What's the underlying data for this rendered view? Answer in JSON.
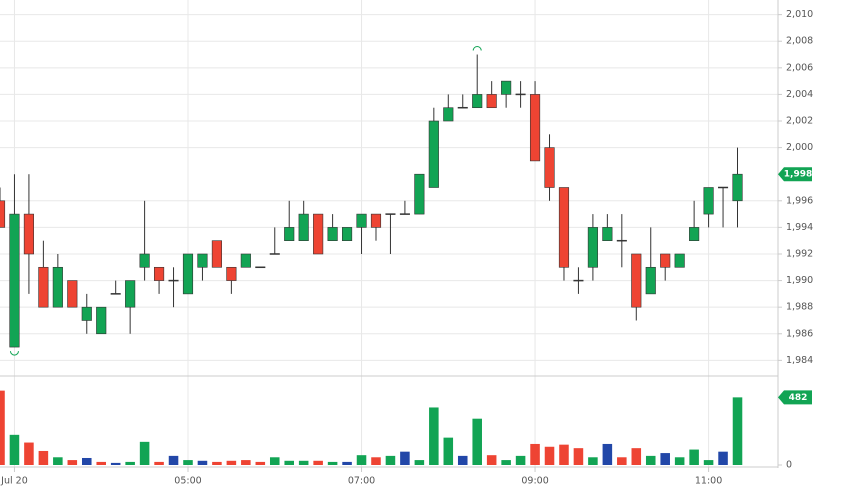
{
  "chart_data": {
    "type": "candlestick",
    "x": [
      0,
      1,
      2,
      3,
      4,
      5,
      6,
      7,
      8,
      9,
      10,
      11,
      12,
      13,
      14,
      15,
      16,
      17,
      18,
      19,
      20,
      21,
      22,
      23,
      24,
      25,
      26,
      27,
      28,
      29,
      30,
      31,
      32,
      33,
      34,
      35,
      36,
      37,
      38,
      39,
      40,
      41,
      42,
      43,
      44,
      45,
      46,
      47,
      48,
      49,
      50,
      51
    ],
    "open": [
      1996,
      1985,
      1995,
      1991,
      1988,
      1990,
      1987,
      1986,
      1989,
      1988,
      1991,
      1991,
      1990,
      1989,
      1991,
      1993,
      1991,
      1991,
      1991,
      1992,
      1993,
      1993,
      1995,
      1993,
      1993,
      1994,
      1995,
      1995,
      1995,
      1995,
      1997,
      2002,
      2003,
      2003,
      2004,
      2004,
      2004,
      2004,
      2000,
      1997,
      1990,
      1991,
      1993,
      1993,
      1992,
      1989,
      1992,
      1991,
      1993,
      1995,
      1997,
      1996
    ],
    "high": [
      1997,
      1998,
      1998,
      1993,
      1992,
      1990,
      1989,
      1988,
      1990,
      1990,
      1996,
      1991,
      1991,
      1992,
      1992,
      1993,
      1991,
      1992,
      1991,
      1994,
      1996,
      1996,
      1995,
      1995,
      1994,
      1995,
      1995,
      1995,
      1996,
      1998,
      2003,
      2004,
      2004,
      2007,
      2005,
      2005,
      2005,
      2005,
      2001,
      1997,
      1991,
      1995,
      1995,
      1995,
      1992,
      1994,
      1992,
      1992,
      1996,
      1997,
      1997,
      2000
    ],
    "low": [
      1994,
      1985,
      1989,
      1988,
      1988,
      1988,
      1986,
      1986,
      1989,
      1986,
      1990,
      1989,
      1988,
      1989,
      1990,
      1991,
      1989,
      1991,
      1991,
      1992,
      1993,
      1993,
      1992,
      1993,
      1993,
      1992,
      1993,
      1992,
      1995,
      1995,
      1997,
      2002,
      2003,
      2003,
      2003,
      2003,
      2003,
      1999,
      1996,
      1990,
      1989,
      1990,
      1993,
      1991,
      1987,
      1989,
      1990,
      1991,
      1993,
      1994,
      1994,
      1994
    ],
    "close": [
      1994,
      1995,
      1992,
      1988,
      1991,
      1988,
      1988,
      1988,
      1989,
      1990,
      1992,
      1990,
      1990,
      1992,
      1992,
      1991,
      1990,
      1992,
      1991,
      1992,
      1994,
      1995,
      1992,
      1994,
      1994,
      1995,
      1994,
      1995,
      1995,
      1998,
      2002,
      2003,
      2003,
      2004,
      2003,
      2005,
      2004,
      1999,
      1997,
      1991,
      1990,
      1994,
      1994,
      1993,
      1988,
      1991,
      1991,
      1992,
      1994,
      1997,
      1997,
      1998
    ],
    "up_color": "#12a454",
    "down_color": "#ee4433",
    "xlim": [
      0,
      53.8
    ],
    "xticks": [
      {
        "value": 1,
        "label": "Jul 20"
      },
      {
        "value": 13,
        "label": "05:00"
      },
      {
        "value": 25,
        "label": "07:00"
      },
      {
        "value": 37,
        "label": "09:00"
      },
      {
        "value": 49,
        "label": "11:00"
      }
    ],
    "ylim": [
      1982.9,
      2011.1
    ],
    "yticks": [
      {
        "value": 1984,
        "label": "1,984"
      },
      {
        "value": 1986,
        "label": "1,986"
      },
      {
        "value": 1988,
        "label": "1,988"
      },
      {
        "value": 1990,
        "label": "1,990"
      },
      {
        "value": 1992,
        "label": "1,992"
      },
      {
        "value": 1994,
        "label": "1,994"
      },
      {
        "value": 1996,
        "label": "1,996"
      },
      {
        "value": 2000,
        "label": "2,000"
      },
      {
        "value": 2002,
        "label": "2,002"
      },
      {
        "value": 2004,
        "label": "2,004"
      },
      {
        "value": 2006,
        "label": "2,006"
      },
      {
        "value": 2008,
        "label": "2,008"
      },
      {
        "value": 2010,
        "label": "2,010"
      }
    ],
    "last_price": {
      "value": 1998,
      "label": "1,998"
    },
    "grid": true,
    "volume": {
      "values": [
        530,
        215,
        160,
        100,
        55,
        35,
        50,
        22,
        15,
        22,
        165,
        22,
        65,
        35,
        30,
        22,
        30,
        35,
        22,
        55,
        30,
        30,
        30,
        22,
        22,
        70,
        55,
        65,
        95,
        35,
        410,
        195,
        65,
        330,
        70,
        35,
        65,
        150,
        130,
        145,
        120,
        55,
        150,
        55,
        120,
        65,
        85,
        55,
        110,
        35,
        95,
        482
      ],
      "colors": [
        "#ee4433",
        "#12a454",
        "#ee4433",
        "#ee4433",
        "#12a454",
        "#ee4433",
        "#2247a8",
        "#ee4433",
        "#2247a8",
        "#12a454",
        "#12a454",
        "#ee4433",
        "#2247a8",
        "#12a454",
        "#2247a8",
        "#ee4433",
        "#ee4433",
        "#ee4433",
        "#ee4433",
        "#12a454",
        "#12a454",
        "#12a454",
        "#ee4433",
        "#12a454",
        "#2247a8",
        "#12a454",
        "#ee4433",
        "#12a454",
        "#2247a8",
        "#12a454",
        "#12a454",
        "#12a454",
        "#2247a8",
        "#12a454",
        "#ee4433",
        "#12a454",
        "#12a454",
        "#ee4433",
        "#ee4433",
        "#ee4433",
        "#ee4433",
        "#12a454",
        "#2247a8",
        "#ee4433",
        "#ee4433",
        "#12a454",
        "#2247a8",
        "#12a454",
        "#12a454",
        "#12a454",
        "#2247a8",
        "#12a454"
      ],
      "ylim": [
        0,
        620
      ],
      "yticks": [
        0
      ]
    }
  }
}
